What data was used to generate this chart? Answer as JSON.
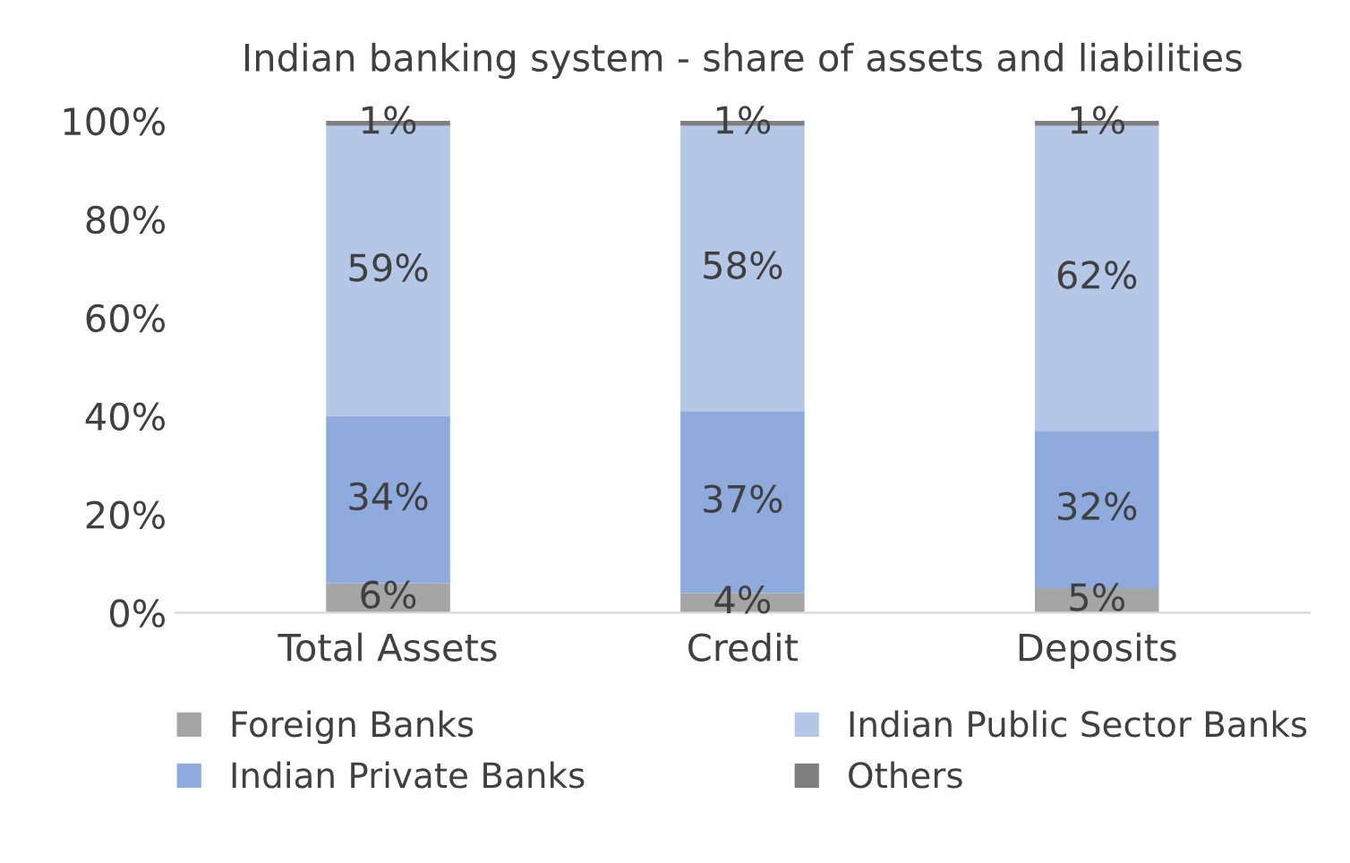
{
  "chart_data": {
    "type": "bar",
    "title": "Indian banking system - share of assets and liabilities",
    "stacked": true,
    "categories": [
      "Total Assets",
      "Credit",
      "Deposits"
    ],
    "series": [
      {
        "name": "Foreign Banks",
        "color": "#a5a5a5",
        "values": [
          6,
          4,
          5
        ],
        "value_labels": [
          "6%",
          "4%",
          "5%"
        ]
      },
      {
        "name": "Indian Private Banks",
        "color": "#8faadc",
        "values": [
          34,
          37,
          32
        ],
        "value_labels": [
          "34%",
          "37%",
          "32%"
        ]
      },
      {
        "name": "Indian Public Sector Banks",
        "color": "#b4c7e7",
        "values": [
          59,
          58,
          62
        ],
        "value_labels": [
          "59%",
          "58%",
          "62%"
        ]
      },
      {
        "name": "Others",
        "color": "#7f7f7f",
        "values": [
          1,
          1,
          1
        ],
        "value_labels": [
          "1%",
          "1%",
          "1%"
        ]
      }
    ],
    "ylim": [
      0,
      100
    ],
    "yticks": [
      {
        "value": 0,
        "label": "0%"
      },
      {
        "value": 20,
        "label": "20%"
      },
      {
        "value": 40,
        "label": "40%"
      },
      {
        "value": 60,
        "label": "60%"
      },
      {
        "value": 80,
        "label": "80%"
      },
      {
        "value": 100,
        "label": "100%"
      }
    ],
    "grid": false,
    "legend": "bottom"
  }
}
